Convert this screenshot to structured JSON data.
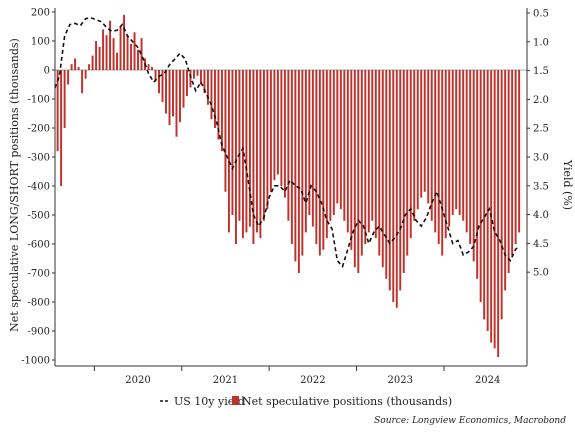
{
  "chart_data": {
    "type": "bar+line",
    "title": "",
    "ylabel_left": "Net speculative LONG/SHORT positions (thousands)",
    "ylabel_right": "Yield (%)",
    "xlabel": "",
    "x_ticks": [
      "2020",
      "2021",
      "2022",
      "2023",
      "2024"
    ],
    "x_range": [
      2019.55,
      2024.95
    ],
    "ylim_left": [
      -1000,
      200
    ],
    "yticks_left": [
      "200",
      "100",
      "0",
      "-100",
      "-200",
      "-300",
      "-400",
      "-500",
      "-600",
      "-700",
      "-800",
      "-900",
      "-1000"
    ],
    "ylim_right_inverted": [
      0.5,
      5.0
    ],
    "yticks_right": [
      "0.5",
      "1.0",
      "1.5",
      "2.0",
      "2.5",
      "3.0",
      "3.5",
      "4.0",
      "4.5",
      "5.0"
    ],
    "grid": false,
    "legend_position": "bottom",
    "series": [
      {
        "name": "Net speculative positions (thousands)",
        "kind": "bar",
        "axis": "left",
        "color": "#c0312b",
        "x": [
          2019.58,
          2019.62,
          2019.66,
          2019.7,
          2019.74,
          2019.78,
          2019.82,
          2019.86,
          2019.9,
          2019.94,
          2019.98,
          2020.02,
          2020.06,
          2020.1,
          2020.14,
          2020.18,
          2020.22,
          2020.26,
          2020.3,
          2020.34,
          2020.38,
          2020.42,
          2020.46,
          2020.5,
          2020.54,
          2020.58,
          2020.62,
          2020.66,
          2020.7,
          2020.74,
          2020.78,
          2020.82,
          2020.86,
          2020.9,
          2020.94,
          2020.98,
          2021.02,
          2021.06,
          2021.1,
          2021.14,
          2021.18,
          2021.22,
          2021.26,
          2021.3,
          2021.34,
          2021.38,
          2021.42,
          2021.46,
          2021.5,
          2021.54,
          2021.58,
          2021.62,
          2021.66,
          2021.7,
          2021.74,
          2021.78,
          2021.82,
          2021.86,
          2021.9,
          2021.94,
          2021.98,
          2022.02,
          2022.06,
          2022.1,
          2022.14,
          2022.18,
          2022.22,
          2022.26,
          2022.3,
          2022.34,
          2022.38,
          2022.42,
          2022.46,
          2022.5,
          2022.54,
          2022.58,
          2022.62,
          2022.66,
          2022.7,
          2022.74,
          2022.78,
          2022.82,
          2022.86,
          2022.9,
          2022.94,
          2022.98,
          2023.02,
          2023.06,
          2023.1,
          2023.14,
          2023.18,
          2023.22,
          2023.26,
          2023.3,
          2023.34,
          2023.38,
          2023.42,
          2023.46,
          2023.5,
          2023.54,
          2023.58,
          2023.62,
          2023.66,
          2023.7,
          2023.74,
          2023.78,
          2023.82,
          2023.86,
          2023.9,
          2023.94,
          2023.98,
          2024.02,
          2024.06,
          2024.1,
          2024.14,
          2024.18,
          2024.22,
          2024.26,
          2024.3,
          2024.34,
          2024.38,
          2024.42,
          2024.46,
          2024.5,
          2024.54,
          2024.58,
          2024.62,
          2024.66,
          2024.7,
          2024.74,
          2024.78,
          2024.82,
          2024.86
        ],
        "values": [
          -280,
          -400,
          -200,
          -50,
          20,
          40,
          10,
          -80,
          -30,
          20,
          50,
          100,
          80,
          140,
          120,
          170,
          110,
          60,
          150,
          190,
          120,
          90,
          130,
          70,
          110,
          40,
          20,
          10,
          -40,
          -80,
          -110,
          -150,
          -190,
          -160,
          -230,
          -180,
          -130,
          -90,
          -60,
          -30,
          -20,
          -50,
          -80,
          -120,
          -170,
          -200,
          -240,
          -280,
          -420,
          -560,
          -500,
          -600,
          -520,
          -580,
          -560,
          -540,
          -600,
          -560,
          -580,
          -520,
          -480,
          -420,
          -380,
          -360,
          -400,
          -440,
          -520,
          -600,
          -660,
          -700,
          -640,
          -560,
          -500,
          -540,
          -600,
          -640,
          -620,
          -580,
          -520,
          -500,
          -460,
          -480,
          -520,
          -560,
          -620,
          -680,
          -700,
          -640,
          -600,
          -560,
          -520,
          -580,
          -640,
          -680,
          -720,
          -760,
          -800,
          -820,
          -760,
          -700,
          -640,
          -580,
          -520,
          -480,
          -440,
          -420,
          -460,
          -520,
          -560,
          -600,
          -640,
          -580,
          -540,
          -500,
          -480,
          -500,
          -520,
          -560,
          -600,
          -660,
          -720,
          -800,
          -860,
          -900,
          -940,
          -960,
          -990,
          -860,
          -760,
          -700,
          -640,
          -600,
          -560
        ]
      },
      {
        "name": "US 10y yield",
        "kind": "line",
        "axis": "right",
        "color": "#111111",
        "dash": "4,3",
        "x": [
          2019.55,
          2019.6,
          2019.66,
          2019.72,
          2019.78,
          2019.84,
          2019.9,
          2019.96,
          2020.02,
          2020.08,
          2020.14,
          2020.2,
          2020.26,
          2020.32,
          2020.38,
          2020.44,
          2020.5,
          2020.56,
          2020.62,
          2020.68,
          2020.74,
          2020.8,
          2020.86,
          2020.92,
          2020.98,
          2021.04,
          2021.1,
          2021.16,
          2021.22,
          2021.28,
          2021.34,
          2021.4,
          2021.46,
          2021.52,
          2021.58,
          2021.64,
          2021.7,
          2021.76,
          2021.82,
          2021.88,
          2021.94,
          2022.0,
          2022.06,
          2022.12,
          2022.18,
          2022.24,
          2022.3,
          2022.36,
          2022.42,
          2022.48,
          2022.54,
          2022.6,
          2022.66,
          2022.72,
          2022.78,
          2022.84,
          2022.9,
          2022.96,
          2023.02,
          2023.08,
          2023.14,
          2023.2,
          2023.26,
          2023.32,
          2023.38,
          2023.44,
          2023.5,
          2023.56,
          2023.62,
          2023.68,
          2023.74,
          2023.8,
          2023.86,
          2023.92,
          2023.98,
          2024.04,
          2024.1,
          2024.16,
          2024.22,
          2024.28,
          2024.34,
          2024.4,
          2024.46,
          2024.52,
          2024.58,
          2024.64,
          2024.7,
          2024.76,
          2024.82,
          2024.86
        ],
        "values": [
          1.8,
          1.6,
          0.9,
          0.7,
          0.68,
          0.72,
          0.6,
          0.58,
          0.62,
          0.65,
          0.75,
          0.82,
          0.8,
          0.7,
          0.9,
          1.0,
          1.1,
          1.3,
          1.55,
          1.7,
          1.6,
          1.55,
          1.4,
          1.3,
          1.2,
          1.3,
          1.6,
          1.85,
          1.7,
          1.9,
          2.1,
          2.4,
          2.8,
          3.0,
          3.2,
          3.0,
          2.85,
          3.4,
          4.0,
          4.2,
          4.05,
          3.7,
          3.5,
          3.5,
          3.6,
          3.4,
          3.5,
          3.55,
          3.8,
          3.5,
          3.6,
          3.8,
          4.1,
          4.25,
          4.8,
          4.9,
          4.6,
          4.3,
          4.1,
          4.2,
          4.5,
          4.3,
          4.2,
          4.35,
          4.5,
          4.4,
          4.25,
          4.0,
          3.9,
          4.1,
          4.2,
          4.05,
          3.8,
          3.6,
          3.9,
          4.2,
          4.5,
          4.45,
          4.7,
          4.65,
          4.55,
          4.2,
          4.05,
          3.9,
          4.3,
          4.45,
          4.7,
          4.8,
          4.6,
          4.55
        ]
      }
    ],
    "legend": [
      {
        "label": "US 10y yield",
        "marker": "dash",
        "color": "#111111"
      },
      {
        "label": "Net speculative positions (thousands)",
        "marker": "square",
        "color": "#c0312b"
      }
    ],
    "source": "Source: Longview Economics, Macrobond"
  }
}
